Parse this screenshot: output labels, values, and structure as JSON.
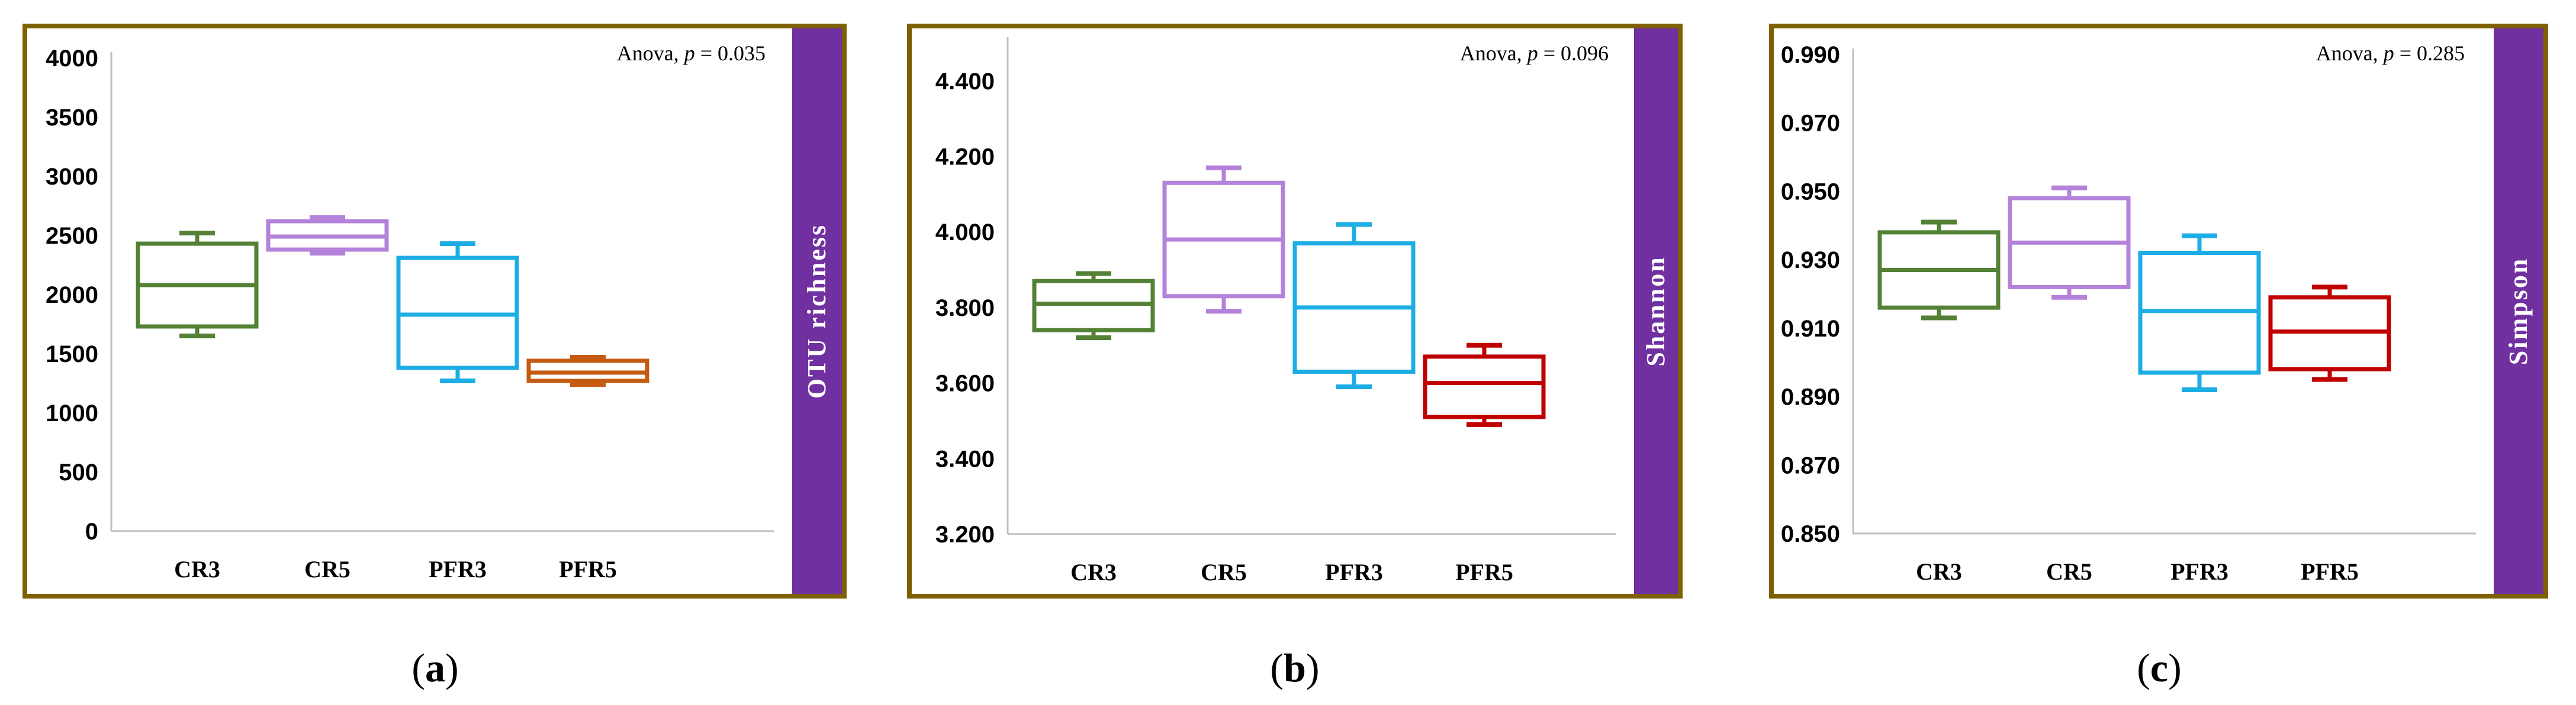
{
  "colors": {
    "frame": "#7f6000",
    "sidebar": "#7030a0",
    "sidebar_text": "#ffffff",
    "axis": "#bfbfbf"
  },
  "chart_data": [
    {
      "type": "box",
      "caption": "a",
      "ylabel": "OTU richness",
      "annotation_prefix": "Anova, ",
      "annotation_p": "p",
      "annotation_value": " = 0.035",
      "ylim": [
        0,
        4000
      ],
      "ytick_labels": [
        "0",
        "500",
        "1000",
        "1500",
        "2000",
        "2500",
        "3000",
        "3500",
        "4000"
      ],
      "categories": [
        "CR3",
        "CR5",
        "PFR3",
        "PFR5"
      ],
      "colors": [
        "#538135",
        "#b482da",
        "#1cade4",
        "#c55a11"
      ],
      "boxes": [
        {
          "min": 1650,
          "q1": 1730,
          "median": 2080,
          "q3": 2430,
          "max": 2520
        },
        {
          "min": 2350,
          "q1": 2380,
          "median": 2490,
          "q3": 2620,
          "max": 2650
        },
        {
          "min": 1270,
          "q1": 1380,
          "median": 1830,
          "q3": 2310,
          "max": 2430
        },
        {
          "min": 1240,
          "q1": 1270,
          "median": 1340,
          "q3": 1440,
          "max": 1470
        }
      ]
    },
    {
      "type": "box",
      "caption": "b",
      "ylabel": "Shannon",
      "annotation_prefix": "Anova, ",
      "annotation_p": "p",
      "annotation_value": " = 0.096",
      "ylim": [
        3.2,
        4.5
      ],
      "ytick_labels": [
        "3.200",
        "3.400",
        "3.600",
        "3.800",
        "4.000",
        "4.200",
        "4.400"
      ],
      "categories": [
        "CR3",
        "CR5",
        "PFR3",
        "PFR5"
      ],
      "colors": [
        "#538135",
        "#b482da",
        "#1cade4",
        "#c00000"
      ],
      "boxes": [
        {
          "min": 3.72,
          "q1": 3.74,
          "median": 3.81,
          "q3": 3.87,
          "max": 3.89
        },
        {
          "min": 3.79,
          "q1": 3.83,
          "median": 3.98,
          "q3": 4.13,
          "max": 4.17
        },
        {
          "min": 3.59,
          "q1": 3.63,
          "median": 3.8,
          "q3": 3.97,
          "max": 4.02
        },
        {
          "min": 3.49,
          "q1": 3.51,
          "median": 3.6,
          "q3": 3.67,
          "max": 3.7
        }
      ]
    },
    {
      "type": "box",
      "caption": "c",
      "ylabel": "Simpson",
      "annotation_prefix": "Anova, ",
      "annotation_p": "p",
      "annotation_value": " = 0.285",
      "ylim": [
        0.85,
        0.99
      ],
      "ytick_labels": [
        "0.850",
        "0.870",
        "0.890",
        "0.910",
        "0.930",
        "0.950",
        "0.970",
        "0.990"
      ],
      "categories": [
        "CR3",
        "CR5",
        "PFR3",
        "PFR5"
      ],
      "colors": [
        "#538135",
        "#b482da",
        "#1cade4",
        "#c00000"
      ],
      "boxes": [
        {
          "min": 0.913,
          "q1": 0.916,
          "median": 0.927,
          "q3": 0.938,
          "max": 0.941
        },
        {
          "min": 0.919,
          "q1": 0.922,
          "median": 0.935,
          "q3": 0.948,
          "max": 0.951
        },
        {
          "min": 0.892,
          "q1": 0.897,
          "median": 0.915,
          "q3": 0.932,
          "max": 0.937
        },
        {
          "min": 0.895,
          "q1": 0.898,
          "median": 0.909,
          "q3": 0.919,
          "max": 0.922
        }
      ]
    }
  ]
}
